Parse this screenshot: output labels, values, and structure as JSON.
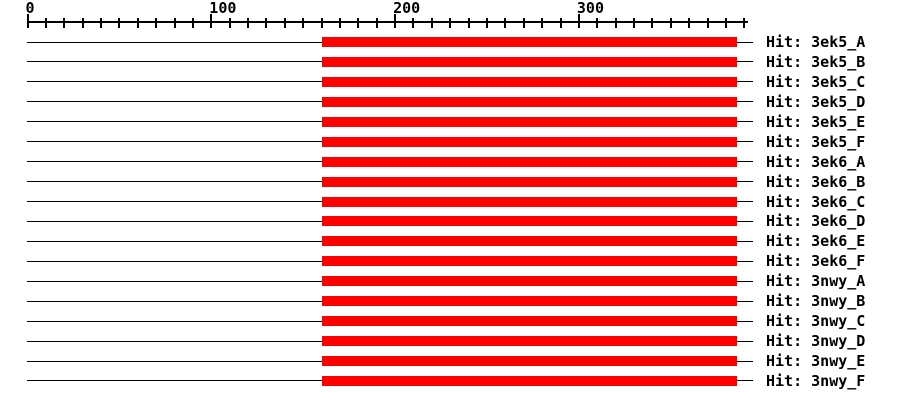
{
  "figure": {
    "background_color": "#ffffff",
    "line_color": "#000000",
    "bar_color": "#ff0000",
    "text_color": "#000000"
  },
  "chart_data": {
    "type": "bar",
    "orientation": "horizontal",
    "description": "Alignment hit map: query position ruler on top, one row per template hit with a red bar marking the aligned region of the query",
    "axis": {
      "min": 0,
      "max": 392,
      "major_ticks": [
        0,
        100,
        200,
        300
      ],
      "major_tick_labels": [
        "0",
        "100",
        "200",
        "300"
      ],
      "minor_tick_interval": 10,
      "first_minor_tick": 0,
      "last_minor_tick": 390
    },
    "query_line_span": [
      0,
      395
    ],
    "legend_position": "right",
    "grid": false,
    "rows": [
      {
        "label": "Hit: 3ek5_A",
        "hit_start": 160,
        "hit_end": 386
      },
      {
        "label": "Hit: 3ek5_B",
        "hit_start": 160,
        "hit_end": 386
      },
      {
        "label": "Hit: 3ek5_C",
        "hit_start": 160,
        "hit_end": 386
      },
      {
        "label": "Hit: 3ek5_D",
        "hit_start": 160,
        "hit_end": 386
      },
      {
        "label": "Hit: 3ek5_E",
        "hit_start": 160,
        "hit_end": 386
      },
      {
        "label": "Hit: 3ek5_F",
        "hit_start": 160,
        "hit_end": 386
      },
      {
        "label": "Hit: 3ek6_A",
        "hit_start": 160,
        "hit_end": 386
      },
      {
        "label": "Hit: 3ek6_B",
        "hit_start": 160,
        "hit_end": 386
      },
      {
        "label": "Hit: 3ek6_C",
        "hit_start": 160,
        "hit_end": 386
      },
      {
        "label": "Hit: 3ek6_D",
        "hit_start": 160,
        "hit_end": 386
      },
      {
        "label": "Hit: 3ek6_E",
        "hit_start": 160,
        "hit_end": 386
      },
      {
        "label": "Hit: 3ek6_F",
        "hit_start": 160,
        "hit_end": 386
      },
      {
        "label": "Hit: 3nwy_A",
        "hit_start": 160,
        "hit_end": 386
      },
      {
        "label": "Hit: 3nwy_B",
        "hit_start": 160,
        "hit_end": 386
      },
      {
        "label": "Hit: 3nwy_C",
        "hit_start": 160,
        "hit_end": 386
      },
      {
        "label": "Hit: 3nwy_D",
        "hit_start": 160,
        "hit_end": 386
      },
      {
        "label": "Hit: 3nwy_E",
        "hit_start": 160,
        "hit_end": 386
      },
      {
        "label": "Hit: 3nwy_F",
        "hit_start": 160,
        "hit_end": 386
      }
    ]
  }
}
